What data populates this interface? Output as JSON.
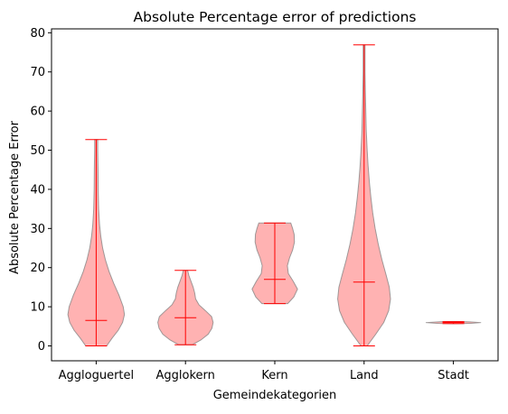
{
  "chart_data": {
    "type": "violin",
    "title": "Absolute Percentage error of predictions",
    "xlabel": "Gemeindekategorien",
    "ylabel": "Absolute Percentage Error",
    "ylim": [
      -3.8,
      81
    ],
    "yticks": [
      0,
      10,
      20,
      30,
      40,
      50,
      60,
      70,
      80
    ],
    "grid": false,
    "categories": [
      "Aggloguertel",
      "Agglokern",
      "Kern",
      "Land",
      "Stadt"
    ],
    "violins": [
      {
        "category": "Aggloguertel",
        "min": 0.0,
        "median": 6.5,
        "max": 52.7,
        "density": [
          [
            0,
            0.34
          ],
          [
            2,
            0.52
          ],
          [
            4,
            0.72
          ],
          [
            6,
            0.86
          ],
          [
            8,
            0.92
          ],
          [
            10,
            0.88
          ],
          [
            13,
            0.74
          ],
          [
            16,
            0.57
          ],
          [
            19,
            0.42
          ],
          [
            22,
            0.3
          ],
          [
            25,
            0.21
          ],
          [
            28,
            0.15
          ],
          [
            31,
            0.11
          ],
          [
            35,
            0.08
          ],
          [
            40,
            0.065
          ],
          [
            45,
            0.06
          ],
          [
            50,
            0.05
          ],
          [
            52.7,
            0.05
          ]
        ]
      },
      {
        "category": "Agglokern",
        "min": 0.3,
        "median": 7.2,
        "max": 19.3,
        "density": [
          [
            0.3,
            0.22
          ],
          [
            1.5,
            0.5
          ],
          [
            3,
            0.74
          ],
          [
            4.5,
            0.86
          ],
          [
            6,
            0.9
          ],
          [
            7.5,
            0.85
          ],
          [
            9,
            0.65
          ],
          [
            10.5,
            0.44
          ],
          [
            12,
            0.33
          ],
          [
            13.5,
            0.3
          ],
          [
            15,
            0.25
          ],
          [
            16.5,
            0.18
          ],
          [
            18,
            0.11
          ],
          [
            19.3,
            0.07
          ]
        ]
      },
      {
        "category": "Kern",
        "min": 10.8,
        "median": 17.0,
        "max": 31.4,
        "density": [
          [
            10.8,
            0.42
          ],
          [
            12.5,
            0.62
          ],
          [
            14.5,
            0.74
          ],
          [
            16.5,
            0.6
          ],
          [
            18.5,
            0.44
          ],
          [
            20.5,
            0.41
          ],
          [
            22.5,
            0.48
          ],
          [
            24.5,
            0.58
          ],
          [
            26.5,
            0.64
          ],
          [
            28.5,
            0.63
          ],
          [
            30,
            0.58
          ],
          [
            31.4,
            0.52
          ]
        ]
      },
      {
        "category": "Land",
        "min": 0.0,
        "median": 16.3,
        "max": 76.9,
        "density": [
          [
            0,
            0.1
          ],
          [
            3,
            0.38
          ],
          [
            6,
            0.64
          ],
          [
            9,
            0.8
          ],
          [
            12,
            0.86
          ],
          [
            15,
            0.82
          ],
          [
            18,
            0.72
          ],
          [
            22,
            0.58
          ],
          [
            26,
            0.46
          ],
          [
            30,
            0.36
          ],
          [
            34,
            0.28
          ],
          [
            38,
            0.22
          ],
          [
            42,
            0.17
          ],
          [
            46,
            0.13
          ],
          [
            50,
            0.1
          ],
          [
            55,
            0.07
          ],
          [
            60,
            0.055
          ],
          [
            65,
            0.04
          ],
          [
            70,
            0.03
          ],
          [
            74,
            0.03
          ],
          [
            76.9,
            0.03
          ]
        ]
      },
      {
        "category": "Stadt",
        "min": 5.7,
        "median": 6.0,
        "max": 6.2,
        "density": [
          [
            5.7,
            0.9
          ],
          [
            6.2,
            0.9
          ]
        ]
      }
    ],
    "colors": {
      "body_fill": "#ff0000",
      "body_alpha": 0.3,
      "body_edge": "#808080",
      "lines": "#ff0000",
      "axes": "#000000"
    }
  }
}
